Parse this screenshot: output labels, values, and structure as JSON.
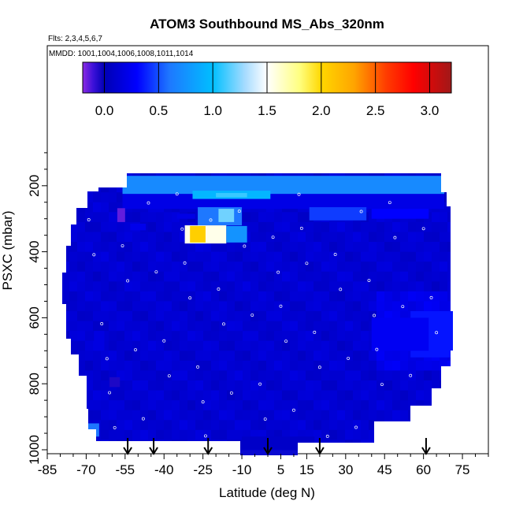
{
  "chart_data": {
    "type": "heatmap",
    "title": "ATOM3 Southbound MS_Abs_320nm",
    "subtitle_flights": "Flts: 2,3,4,5,6,7",
    "subtitle_dates": "MMDD: 1001,1004,1006,1008,1011,1014",
    "xlabel": "Latitude (deg N)",
    "ylabel": "PSXC (mbar)",
    "xlim": [
      -85,
      85
    ],
    "ylim": [
      1000,
      0
    ],
    "x_ticks": [
      -85,
      -70,
      -55,
      -40,
      -25,
      -10,
      5,
      15,
      30,
      45,
      60,
      75
    ],
    "y_ticks": [
      200,
      400,
      600,
      800,
      1000
    ],
    "colorbar": {
      "range": [
        -0.2,
        3.2
      ],
      "ticks": [
        0.0,
        0.5,
        1.0,
        1.5,
        2.0,
        2.5,
        3.0
      ],
      "tick_labels": [
        "0.0",
        "0.5",
        "1.0",
        "1.5",
        "2.0",
        "2.5",
        "3.0"
      ],
      "stops": [
        {
          "v": -0.2,
          "c": "#8a2be2"
        },
        {
          "v": -0.1,
          "c": "#3a10d8"
        },
        {
          "v": 0.0,
          "c": "#0000b4"
        },
        {
          "v": 0.3,
          "c": "#0000ff"
        },
        {
          "v": 0.6,
          "c": "#1e78ff"
        },
        {
          "v": 1.0,
          "c": "#00bfff"
        },
        {
          "v": 1.3,
          "c": "#a8dcff"
        },
        {
          "v": 1.5,
          "c": "#ffffff"
        },
        {
          "v": 1.8,
          "c": "#ffff80"
        },
        {
          "v": 2.0,
          "c": "#ffd700"
        },
        {
          "v": 2.3,
          "c": "#ffa500"
        },
        {
          "v": 2.6,
          "c": "#ff3c00"
        },
        {
          "v": 2.85,
          "c": "#ff0000"
        },
        {
          "v": 3.2,
          "c": "#a01818"
        }
      ]
    },
    "regions": [
      {
        "lat0": -56,
        "lat1": 68,
        "p0": 170,
        "p1": 225,
        "value": 0.7
      },
      {
        "lat0": -56,
        "lat1": 68,
        "p0": 225,
        "p1": 270,
        "value": 0.2
      },
      {
        "lat0": -29,
        "lat1": 1,
        "p0": 215,
        "p1": 240,
        "value": 0.95
      },
      {
        "lat0": -20,
        "lat1": -8,
        "p0": 222,
        "p1": 235,
        "value": 1.1
      },
      {
        "lat0": -27,
        "lat1": -10,
        "p0": 265,
        "p1": 320,
        "value": 0.6
      },
      {
        "lat0": -19,
        "lat1": -13,
        "p0": 270,
        "p1": 310,
        "value": 1.2
      },
      {
        "lat0": -32,
        "lat1": -16,
        "p0": 320,
        "p1": 375,
        "value": 1.55
      },
      {
        "lat0": -30,
        "lat1": -24,
        "p0": 322,
        "p1": 372,
        "value": 2.05
      },
      {
        "lat0": -16,
        "lat1": -8,
        "p0": 322,
        "p1": 372,
        "value": 0.75
      },
      {
        "lat0": 16,
        "lat1": 38,
        "p0": 265,
        "p1": 305,
        "value": 0.45
      },
      {
        "lat0": 40,
        "lat1": 62,
        "p0": 270,
        "p1": 300,
        "value": 0.3
      },
      {
        "lat0": -53,
        "lat1": -47,
        "p0": 315,
        "p1": 335,
        "value": 0.22
      },
      {
        "lat0": -35,
        "lat1": -28,
        "p0": 285,
        "p1": 300,
        "value": 0.2
      },
      {
        "lat0": 55,
        "lat1": 72,
        "p0": 580,
        "p1": 720,
        "value": 0.35
      },
      {
        "lat0": 40,
        "lat1": 62,
        "p0": 600,
        "p1": 700,
        "value": 0.25
      },
      {
        "lat0": -67,
        "lat1": -63,
        "p0": 640,
        "p1": 700,
        "value": 0.18
      },
      {
        "lat0": -58,
        "lat1": -55,
        "p0": 268,
        "p1": 310,
        "value": -0.15
      },
      {
        "lat0": -61,
        "lat1": -57,
        "p0": 780,
        "p1": 810,
        "value": -0.05
      },
      {
        "lat0": -70,
        "lat1": -65,
        "p0": 920,
        "p1": 960,
        "value": 0.6
      },
      {
        "lat0": -10,
        "lat1": 18,
        "p0": 960,
        "p1": 1000,
        "value": 0.08
      }
    ],
    "arrow_latitudes": [
      -54,
      -44,
      -23,
      0,
      20,
      61
    ]
  }
}
